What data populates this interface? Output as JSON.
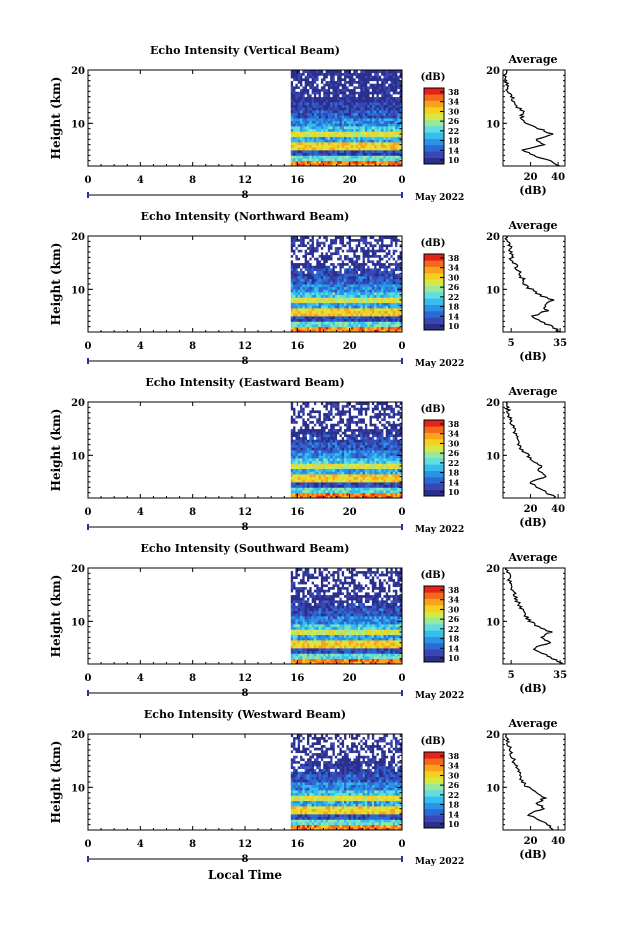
{
  "x_axis_title": "Local Time",
  "colorbar": {
    "unit": "(dB)",
    "ticks": [
      "10",
      "14",
      "18",
      "22",
      "26",
      "30",
      "34",
      "38"
    ],
    "colors": [
      "#2b2f8c",
      "#3a46b3",
      "#2a6ad4",
      "#2b93e6",
      "#35bdf0",
      "#5fdde0",
      "#9ae89c",
      "#d6e843",
      "#f5d020",
      "#f9a21b",
      "#f56a1a",
      "#e5231b"
    ]
  },
  "date_label": "May 2022",
  "chart_data": [
    {
      "type": "heatmap",
      "title": "Echo Intensity (Vertical Beam)",
      "ylabel": "Height (km)",
      "ylim": [
        2,
        20
      ],
      "yticks": [
        "20",
        "10"
      ],
      "xticks": [
        "0",
        "4",
        "8",
        "12",
        "16",
        "20",
        "0"
      ],
      "date_tick": "8",
      "data_start_hour": 15.5,
      "avg_title": "Average",
      "avg_xlabel": "(dB)",
      "avg_xticks": [
        "20",
        "40"
      ],
      "avg_xlim": [
        0,
        45
      ],
      "avg_profile": {
        "height_km": [
          2,
          3,
          4,
          5,
          6,
          7,
          8,
          9,
          10,
          11,
          12,
          13,
          14,
          15,
          16,
          17,
          18,
          19,
          20
        ],
        "db": [
          40,
          34,
          22,
          14,
          30,
          24,
          36,
          26,
          18,
          13,
          15,
          11,
          8,
          7,
          3,
          4,
          2,
          2,
          3
        ]
      }
    },
    {
      "type": "heatmap",
      "title": "Echo Intensity (Northward Beam)",
      "ylabel": "Height (km)",
      "ylim": [
        2,
        20
      ],
      "yticks": [
        "20",
        "10"
      ],
      "xticks": [
        "0",
        "4",
        "8",
        "12",
        "16",
        "20",
        "0"
      ],
      "date_tick": "8",
      "data_start_hour": 15.5,
      "avg_title": "Average",
      "avg_xlabel": "(dB)",
      "avg_xticks": [
        "5",
        "35"
      ],
      "avg_xlim": [
        0,
        38
      ],
      "avg_profile": {
        "height_km": [
          2,
          3,
          4,
          5,
          6,
          7,
          8,
          9,
          10,
          11,
          12,
          13,
          14,
          15,
          16,
          17,
          18,
          19,
          20
        ],
        "db": [
          35,
          30,
          22,
          18,
          27,
          25,
          30,
          22,
          17,
          13,
          12,
          10,
          8,
          7,
          5,
          5,
          4,
          3,
          2
        ]
      }
    },
    {
      "type": "heatmap",
      "title": "Echo Intensity (Eastward Beam)",
      "ylabel": "Height (km)",
      "ylim": [
        2,
        20
      ],
      "yticks": [
        "20",
        "10"
      ],
      "xticks": [
        "0",
        "4",
        "8",
        "12",
        "16",
        "20",
        "0"
      ],
      "date_tick": "8",
      "data_start_hour": 15.5,
      "avg_title": "Average",
      "avg_xlabel": "(dB)",
      "avg_xticks": [
        "20",
        "40"
      ],
      "avg_xlim": [
        0,
        45
      ],
      "avg_profile": {
        "height_km": [
          2,
          3,
          4,
          5,
          6,
          7,
          8,
          9,
          10,
          11,
          12,
          13,
          14,
          15,
          16,
          17,
          18,
          19,
          20
        ],
        "db": [
          38,
          32,
          25,
          20,
          30,
          26,
          28,
          22,
          18,
          14,
          12,
          10,
          9,
          8,
          6,
          5,
          4,
          3,
          2
        ]
      }
    },
    {
      "type": "heatmap",
      "title": "Echo Intensity (Southward Beam)",
      "ylabel": "Height (km)",
      "ylim": [
        2,
        20
      ],
      "yticks": [
        "20",
        "10"
      ],
      "xticks": [
        "0",
        "4",
        "8",
        "12",
        "16",
        "20",
        "0"
      ],
      "date_tick": "8",
      "data_start_hour": 15.5,
      "avg_title": "Average",
      "avg_xlabel": "(dB)",
      "avg_xticks": [
        "5",
        "35"
      ],
      "avg_xlim": [
        0,
        38
      ],
      "avg_profile": {
        "height_km": [
          2,
          3,
          4,
          5,
          6,
          7,
          8,
          9,
          10,
          11,
          12,
          13,
          14,
          15,
          16,
          17,
          18,
          19,
          20
        ],
        "db": [
          36,
          31,
          24,
          19,
          29,
          24,
          29,
          21,
          17,
          13,
          12,
          10,
          8,
          7,
          6,
          5,
          4,
          3,
          2
        ]
      }
    },
    {
      "type": "heatmap",
      "title": "Echo Intensity (Westward Beam)",
      "ylabel": "Height (km)",
      "ylim": [
        2,
        20
      ],
      "yticks": [
        "20",
        "10"
      ],
      "xticks": [
        "0",
        "4",
        "8",
        "12",
        "16",
        "20",
        "0"
      ],
      "date_tick": "8",
      "data_start_hour": 15.5,
      "avg_title": "Average",
      "avg_xlabel": "(dB)",
      "avg_xticks": [
        "20",
        "40"
      ],
      "avg_xlim": [
        0,
        45
      ],
      "avg_profile": {
        "height_km": [
          2,
          3,
          4,
          5,
          6,
          7,
          8,
          9,
          10,
          11,
          12,
          13,
          14,
          15,
          16,
          17,
          18,
          19,
          20
        ],
        "db": [
          38,
          33,
          24,
          18,
          30,
          25,
          30,
          23,
          18,
          14,
          13,
          11,
          9,
          8,
          6,
          5,
          4,
          3,
          2
        ]
      }
    }
  ]
}
